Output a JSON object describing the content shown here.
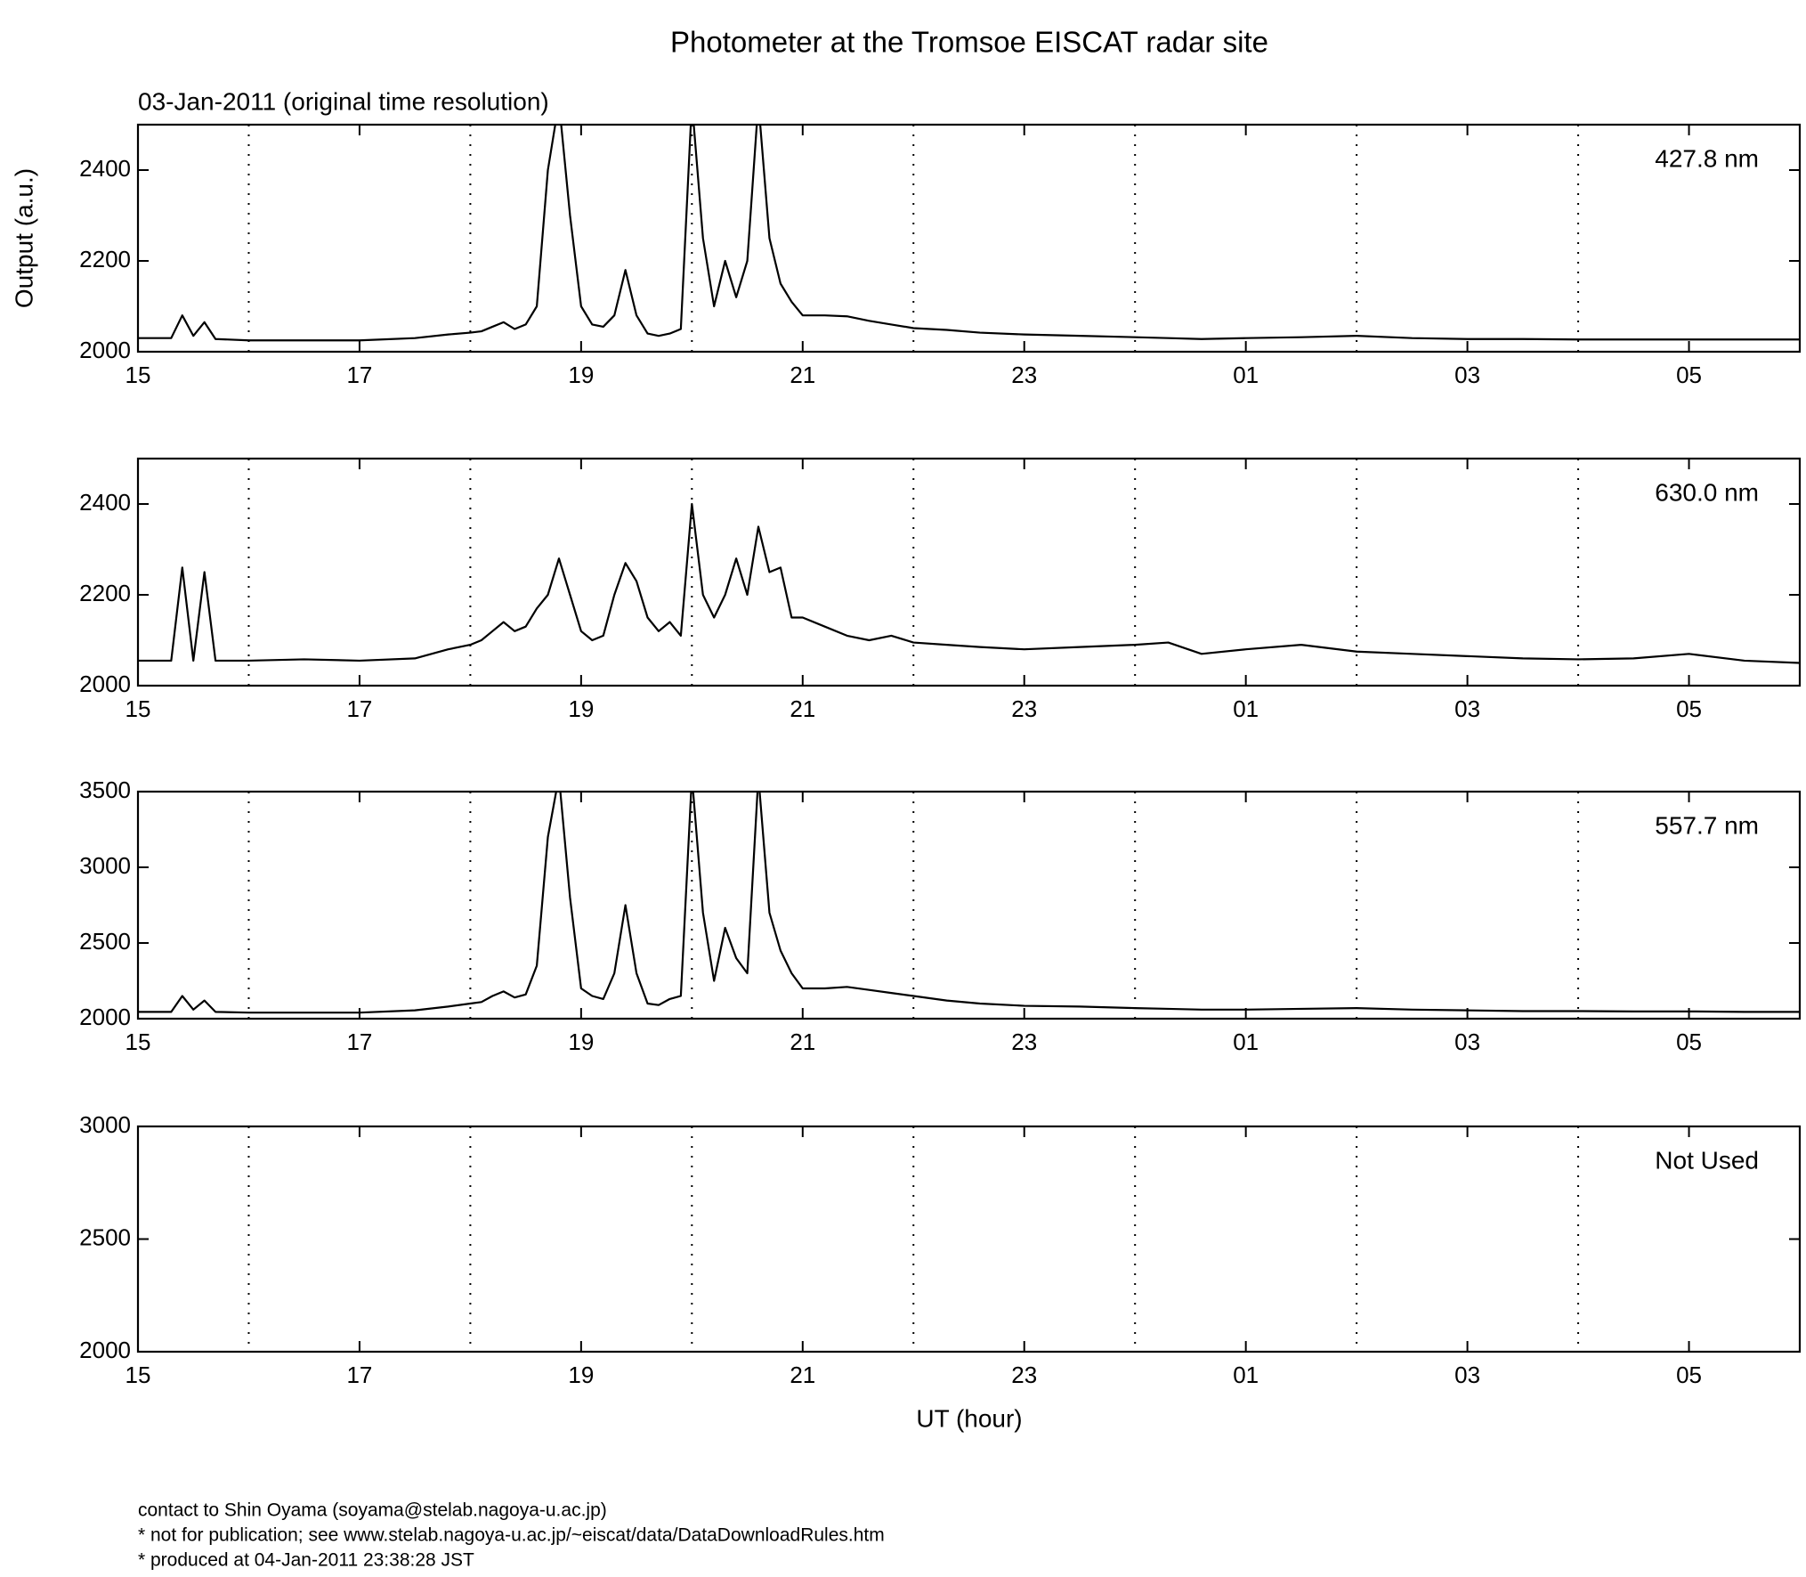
{
  "title": "Photometer at the Tromsoe EISCAT radar site",
  "subtitle": "03-Jan-2011 (original time resolution)",
  "footer": [
    "contact to Shin Oyama (soyama@stelab.nagoya-u.ac.jp)",
    "* not for publication; see www.stelab.nagoya-u.ac.jp/~eiscat/data/DataDownloadRules.htm",
    "* produced at 04-Jan-2011 23:38:28 JST"
  ],
  "chart_data": [
    {
      "type": "line",
      "annotation": "427.8 nm",
      "ylabel": "Output (a.u.)",
      "xlim": [
        15,
        30
      ],
      "xticks": [
        15,
        17,
        19,
        21,
        23,
        {
          "value": 25,
          "label": "01"
        },
        {
          "value": 27,
          "label": "03"
        },
        {
          "value": 29,
          "label": "05"
        }
      ],
      "xgrid_at": [
        16,
        18,
        20,
        22,
        24,
        26,
        28
      ],
      "grid_style": "dotted",
      "ylim": [
        2000,
        2500
      ],
      "yticks": [
        2000,
        2200,
        2400
      ],
      "x": [
        15,
        15.3,
        15.4,
        15.5,
        15.6,
        15.7,
        16,
        16.5,
        17,
        17.5,
        17.8,
        18.0,
        18.1,
        18.2,
        18.3,
        18.4,
        18.5,
        18.6,
        18.7,
        18.8,
        18.9,
        19.0,
        19.1,
        19.2,
        19.3,
        19.4,
        19.5,
        19.6,
        19.7,
        19.8,
        19.9,
        20.0,
        20.1,
        20.2,
        20.3,
        20.4,
        20.5,
        20.6,
        20.7,
        20.8,
        20.9,
        21.0,
        21.2,
        21.4,
        21.6,
        21.8,
        22.0,
        22.3,
        22.6,
        23.0,
        23.5,
        24.0,
        24.3,
        24.6,
        25.0,
        25.5,
        26.0,
        26.5,
        27.0,
        27.5,
        28.0,
        28.5,
        29.0,
        29.5,
        30.0
      ],
      "series": [
        {
          "color": "#000000",
          "values": [
            2030,
            2030,
            2080,
            2035,
            2065,
            2028,
            2025,
            2025,
            2025,
            2030,
            2038,
            2042,
            2045,
            2055,
            2065,
            2050,
            2060,
            2100,
            2400,
            2550,
            2300,
            2100,
            2060,
            2055,
            2080,
            2180,
            2080,
            2040,
            2035,
            2040,
            2050,
            2550,
            2250,
            2100,
            2200,
            2120,
            2200,
            2550,
            2250,
            2150,
            2110,
            2080,
            2080,
            2078,
            2068,
            2060,
            2052,
            2048,
            2042,
            2038,
            2035,
            2032,
            2030,
            2028,
            2030,
            2032,
            2035,
            2030,
            2028,
            2028,
            2027,
            2027,
            2027,
            2027,
            2027
          ]
        }
      ]
    },
    {
      "type": "line",
      "annotation": "630.0 nm",
      "xlim": [
        15,
        30
      ],
      "xticks": [
        15,
        17,
        19,
        21,
        23,
        {
          "value": 25,
          "label": "01"
        },
        {
          "value": 27,
          "label": "03"
        },
        {
          "value": 29,
          "label": "05"
        }
      ],
      "xgrid_at": [
        16,
        18,
        20,
        22,
        24,
        26,
        28
      ],
      "grid_style": "dotted",
      "ylim": [
        2000,
        2500
      ],
      "yticks": [
        2000,
        2200,
        2400
      ],
      "x": [
        15,
        15.3,
        15.4,
        15.5,
        15.6,
        15.7,
        16,
        16.5,
        17,
        17.5,
        17.8,
        18.0,
        18.1,
        18.2,
        18.3,
        18.4,
        18.5,
        18.6,
        18.7,
        18.8,
        18.9,
        19.0,
        19.1,
        19.2,
        19.3,
        19.4,
        19.5,
        19.6,
        19.7,
        19.8,
        19.9,
        20.0,
        20.1,
        20.2,
        20.3,
        20.4,
        20.5,
        20.6,
        20.7,
        20.8,
        20.9,
        21.0,
        21.2,
        21.4,
        21.6,
        21.8,
        22.0,
        22.3,
        22.6,
        23.0,
        23.5,
        24.0,
        24.3,
        24.6,
        25.0,
        25.5,
        26.0,
        26.5,
        27.0,
        27.5,
        28.0,
        28.5,
        29.0,
        29.5,
        30.0
      ],
      "series": [
        {
          "color": "#000000",
          "values": [
            2055,
            2055,
            2260,
            2055,
            2250,
            2055,
            2055,
            2058,
            2055,
            2060,
            2080,
            2090,
            2100,
            2120,
            2140,
            2120,
            2130,
            2170,
            2200,
            2280,
            2200,
            2120,
            2100,
            2110,
            2200,
            2270,
            2230,
            2150,
            2120,
            2140,
            2110,
            2400,
            2200,
            2150,
            2200,
            2280,
            2200,
            2350,
            2250,
            2260,
            2150,
            2150,
            2130,
            2110,
            2100,
            2110,
            2095,
            2090,
            2085,
            2080,
            2085,
            2090,
            2095,
            2070,
            2080,
            2090,
            2075,
            2070,
            2065,
            2060,
            2058,
            2060,
            2070,
            2055,
            2050
          ]
        }
      ]
    },
    {
      "type": "line",
      "annotation": "557.7 nm",
      "xlim": [
        15,
        30
      ],
      "xticks": [
        15,
        17,
        19,
        21,
        23,
        {
          "value": 25,
          "label": "01"
        },
        {
          "value": 27,
          "label": "03"
        },
        {
          "value": 29,
          "label": "05"
        }
      ],
      "xgrid_at": [
        16,
        18,
        20,
        22,
        24,
        26,
        28
      ],
      "grid_style": "dotted",
      "ylim": [
        2000,
        3500
      ],
      "yticks": [
        2000,
        2500,
        3000,
        3500
      ],
      "x": [
        15,
        15.3,
        15.4,
        15.5,
        15.6,
        15.7,
        16,
        16.5,
        17,
        17.5,
        17.8,
        18.0,
        18.1,
        18.2,
        18.3,
        18.4,
        18.5,
        18.6,
        18.7,
        18.8,
        18.9,
        19.0,
        19.1,
        19.2,
        19.3,
        19.4,
        19.5,
        19.6,
        19.7,
        19.8,
        19.9,
        20.0,
        20.1,
        20.2,
        20.3,
        20.4,
        20.5,
        20.6,
        20.7,
        20.8,
        20.9,
        21.0,
        21.2,
        21.4,
        21.6,
        21.8,
        22.0,
        22.3,
        22.6,
        23.0,
        23.5,
        24.0,
        24.3,
        24.6,
        25.0,
        25.5,
        26.0,
        26.5,
        27.0,
        27.5,
        28.0,
        28.5,
        29.0,
        29.5,
        30.0
      ],
      "series": [
        {
          "color": "#000000",
          "values": [
            2045,
            2045,
            2150,
            2060,
            2120,
            2045,
            2040,
            2040,
            2040,
            2055,
            2080,
            2100,
            2110,
            2150,
            2180,
            2140,
            2160,
            2350,
            3200,
            3600,
            2800,
            2200,
            2150,
            2130,
            2300,
            2750,
            2300,
            2100,
            2090,
            2130,
            2150,
            3600,
            2700,
            2250,
            2600,
            2400,
            2300,
            3600,
            2700,
            2450,
            2300,
            2200,
            2200,
            2210,
            2190,
            2170,
            2150,
            2120,
            2100,
            2085,
            2080,
            2070,
            2065,
            2060,
            2060,
            2065,
            2070,
            2060,
            2055,
            2050,
            2050,
            2048,
            2048,
            2045,
            2045
          ]
        }
      ]
    },
    {
      "type": "line",
      "annotation": "Not Used",
      "xlabel": "UT (hour)",
      "xlim": [
        15,
        30
      ],
      "xticks": [
        15,
        17,
        19,
        21,
        23,
        {
          "value": 25,
          "label": "01"
        },
        {
          "value": 27,
          "label": "03"
        },
        {
          "value": 29,
          "label": "05"
        }
      ],
      "xgrid_at": [
        16,
        18,
        20,
        22,
        24,
        26,
        28
      ],
      "grid_style": "dotted",
      "ylim": [
        2000,
        3000
      ],
      "yticks": [
        2000,
        2500,
        3000
      ],
      "series": []
    }
  ]
}
